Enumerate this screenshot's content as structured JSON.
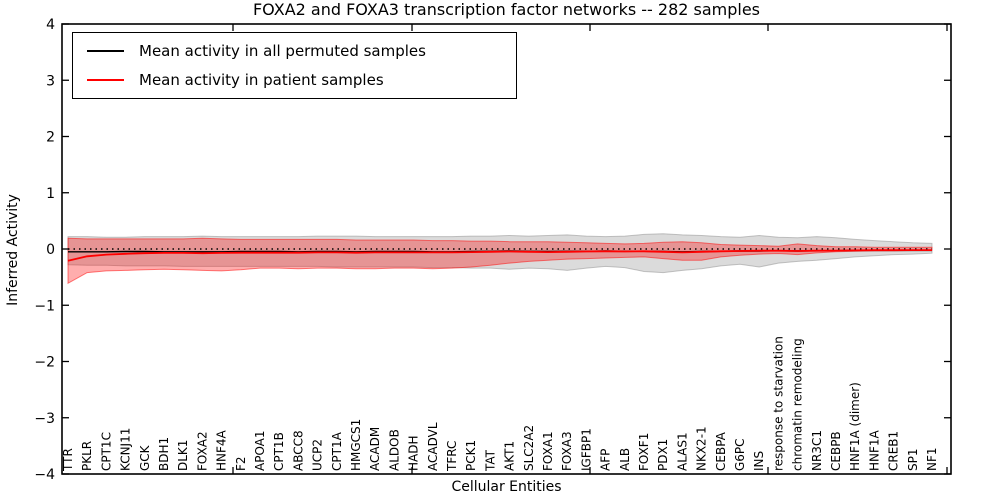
{
  "figure": {
    "title": "FOXA2 and FOXA3 transcription factor networks -- 282 samples",
    "xlabel": "Cellular Entities",
    "ylabel": "Inferred Activity"
  },
  "legend": {
    "items": [
      {
        "label": "Mean activity in all permuted samples",
        "color": "#000000"
      },
      {
        "label": "Mean activity in patient samples",
        "color": "#ff0000"
      }
    ]
  },
  "chart_data": {
    "type": "line",
    "title": "FOXA2 and FOXA3 transcription factor networks -- 282 samples",
    "xlabel": "Cellular Entities",
    "ylabel": "Inferred Activity",
    "ylim": [
      -4,
      4
    ],
    "yticks": [
      -4,
      -3,
      -2,
      -1,
      0,
      1,
      2,
      3,
      4
    ],
    "grid": false,
    "legend_position": "upper left",
    "categories": [
      "TTR",
      "PKLR",
      "CPT1C",
      "KCNJ11",
      "GCK",
      "BDH1",
      "DLK1",
      "FOXA2",
      "HNF4A",
      "F2",
      "APOA1",
      "CPT1B",
      "ABCC8",
      "UCP2",
      "CPT1A",
      "HMGCS1",
      "ACADM",
      "ALDOB",
      "HADH",
      "ACADVL",
      "TFRC",
      "PCK1",
      "TAT",
      "AKT1",
      "SLC2A2",
      "FOXA1",
      "FOXA3",
      "IGFBP1",
      "AFP",
      "ALB",
      "FOXF1",
      "PDX1",
      "ALAS1",
      "NKX2-1",
      "CEBPA",
      "G6PC",
      "INS",
      "response to starvation",
      "chromatin remodeling",
      "NR3C1",
      "CEBPB",
      "HNF1A (dimer)",
      "HNF1A",
      "CREB1",
      "SP1",
      "NF1"
    ],
    "reference_line": {
      "y": 0,
      "style": "dotted",
      "color": "#000000"
    },
    "series": [
      {
        "name": "Mean activity in all permuted samples",
        "role": "permuted-mean",
        "type": "line",
        "color": "#000000",
        "values": [
          -0.05,
          -0.05,
          -0.05,
          -0.045,
          -0.045,
          -0.05,
          -0.05,
          -0.05,
          -0.05,
          -0.045,
          -0.045,
          -0.045,
          -0.05,
          -0.045,
          -0.045,
          -0.05,
          -0.045,
          -0.045,
          -0.045,
          -0.05,
          -0.05,
          -0.045,
          -0.04,
          -0.035,
          -0.04,
          -0.045,
          -0.04,
          -0.04,
          -0.035,
          -0.04,
          -0.04,
          -0.045,
          -0.05,
          -0.045,
          -0.04,
          -0.035,
          -0.035,
          -0.03,
          -0.035,
          -0.03,
          -0.03,
          -0.025,
          -0.025,
          -0.025,
          -0.025,
          -0.025
        ]
      },
      {
        "name": "Mean activity in patient samples",
        "role": "patient-mean",
        "type": "line",
        "color": "#ff0000",
        "values": [
          -0.21,
          -0.13,
          -0.1,
          -0.085,
          -0.075,
          -0.07,
          -0.07,
          -0.075,
          -0.07,
          -0.065,
          -0.065,
          -0.065,
          -0.065,
          -0.06,
          -0.06,
          -0.065,
          -0.06,
          -0.06,
          -0.06,
          -0.06,
          -0.06,
          -0.055,
          -0.05,
          -0.045,
          -0.05,
          -0.055,
          -0.05,
          -0.045,
          -0.04,
          -0.045,
          -0.04,
          -0.05,
          -0.06,
          -0.05,
          -0.04,
          -0.035,
          -0.03,
          -0.03,
          -0.035,
          -0.03,
          -0.028,
          -0.025,
          -0.022,
          -0.022,
          -0.02,
          -0.02
        ]
      },
      {
        "name": "Permuted samples std band",
        "role": "permuted-band",
        "type": "band",
        "color": "#888888",
        "opacity": 0.3,
        "lo": [
          -0.28,
          -0.29,
          -0.29,
          -0.3,
          -0.3,
          -0.3,
          -0.31,
          -0.31,
          -0.31,
          -0.31,
          -0.31,
          -0.31,
          -0.31,
          -0.31,
          -0.32,
          -0.32,
          -0.32,
          -0.32,
          -0.32,
          -0.33,
          -0.33,
          -0.34,
          -0.34,
          -0.36,
          -0.34,
          -0.35,
          -0.38,
          -0.34,
          -0.31,
          -0.33,
          -0.4,
          -0.42,
          -0.38,
          -0.35,
          -0.3,
          -0.27,
          -0.32,
          -0.25,
          -0.22,
          -0.2,
          -0.17,
          -0.14,
          -0.12,
          -0.1,
          -0.09,
          -0.075
        ],
        "hi": [
          0.22,
          0.22,
          0.21,
          0.21,
          0.22,
          0.22,
          0.22,
          0.23,
          0.22,
          0.22,
          0.22,
          0.22,
          0.22,
          0.23,
          0.23,
          0.23,
          0.22,
          0.22,
          0.22,
          0.22,
          0.22,
          0.23,
          0.23,
          0.24,
          0.23,
          0.24,
          0.25,
          0.23,
          0.22,
          0.23,
          0.26,
          0.27,
          0.25,
          0.24,
          0.22,
          0.21,
          0.24,
          0.21,
          0.2,
          0.22,
          0.2,
          0.17,
          0.15,
          0.13,
          0.11,
          0.1
        ]
      },
      {
        "name": "Patient samples std band",
        "role": "patient-band",
        "type": "band",
        "color": "#ff0000",
        "opacity": 0.32,
        "lo": [
          -0.61,
          -0.42,
          -0.39,
          -0.38,
          -0.37,
          -0.36,
          -0.37,
          -0.38,
          -0.39,
          -0.37,
          -0.34,
          -0.34,
          -0.35,
          -0.34,
          -0.34,
          -0.35,
          -0.35,
          -0.34,
          -0.34,
          -0.35,
          -0.34,
          -0.32,
          -0.29,
          -0.25,
          -0.22,
          -0.2,
          -0.18,
          -0.17,
          -0.16,
          -0.15,
          -0.14,
          -0.17,
          -0.2,
          -0.2,
          -0.14,
          -0.11,
          -0.09,
          -0.08,
          -0.1,
          -0.07,
          -0.05,
          -0.04,
          -0.03,
          -0.03,
          -0.025,
          -0.02
        ],
        "hi": [
          0.19,
          0.18,
          0.18,
          0.18,
          0.18,
          0.18,
          0.18,
          0.19,
          0.18,
          0.17,
          0.17,
          0.17,
          0.17,
          0.17,
          0.17,
          0.16,
          0.16,
          0.16,
          0.16,
          0.15,
          0.15,
          0.14,
          0.14,
          0.13,
          0.13,
          0.13,
          0.12,
          0.11,
          0.1,
          0.09,
          0.1,
          0.12,
          0.13,
          0.11,
          0.08,
          0.07,
          0.06,
          0.05,
          0.09,
          0.06,
          0.04,
          0.04,
          0.03,
          0.03,
          0.03,
          0.03
        ]
      }
    ]
  }
}
